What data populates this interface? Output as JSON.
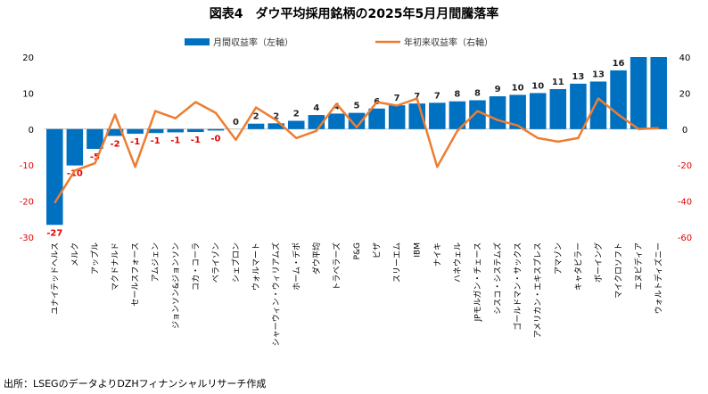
{
  "chart_data": {
    "type": "bar+line",
    "title": "図表4　ダウ平均採用銘柄の2025年5月月間騰落率",
    "categories": [
      "ユナイテッドヘルス",
      "メルク",
      "アップル",
      "マクドナルド",
      "セールスフォース",
      "アムジェン",
      "ジョンソン&ジョンソン",
      "コカ・コーラ",
      "ベライゾン",
      "シェブロン",
      "ウォルマート",
      "シャーウィン・ウィリアムズ",
      "ホーム・デポ",
      "ダウ平均",
      "トラベラーズ",
      "P&G",
      "ビザ",
      "スリーエム",
      "IBM",
      "ナイキ",
      "ハネウェル",
      "JPモルガン・チェース",
      "シスコ・システムズ",
      "ゴールドマン・サックス",
      "アメリカン・エキスプレス",
      "アマゾン",
      "キャタピラー",
      "ボーイング",
      "マイクロソフト",
      "エヌビディア",
      "ウォルトディズニー"
    ],
    "series": [
      {
        "name": "月間収益率（左軸）",
        "type": "bar",
        "axis": "left",
        "color": "#0070c0",
        "values": [
          -26.6,
          -10.1,
          -5.5,
          -1.9,
          -1.3,
          -1.1,
          -0.9,
          -0.8,
          -0.4,
          0.0,
          1.5,
          1.6,
          2.3,
          3.9,
          4.3,
          4.5,
          5.7,
          6.6,
          7.1,
          7.3,
          7.7,
          8.0,
          9.1,
          9.5,
          10.0,
          11.1,
          12.6,
          13.2,
          16.3,
          20.0,
          20.0
        ],
        "labels": [
          "-27",
          "-10",
          "-5",
          "-2",
          "-1",
          "-1",
          "-1",
          "-1",
          "-0",
          "0",
          "2",
          "2",
          "2",
          "4",
          "4",
          "5",
          "6",
          "7",
          "7",
          "7",
          "8",
          "8",
          "9",
          "10",
          "10",
          "11",
          "13",
          "13",
          "16",
          "",
          ""
        ]
      },
      {
        "name": "年初来収益率（右軸）",
        "type": "line",
        "axis": "right",
        "color": "#ed7d31",
        "values": [
          -41,
          -23,
          -19,
          8,
          -21,
          10,
          6,
          15,
          9,
          -6,
          12,
          5,
          -5,
          -1,
          14,
          1,
          15,
          13,
          17,
          -21,
          -1,
          10,
          5,
          2,
          -5,
          -7,
          -5,
          17,
          8,
          0,
          0.5
        ]
      }
    ],
    "ylim_left": [
      -30,
      20
    ],
    "yticks_left": [
      "-30",
      "-20",
      "-10",
      "0",
      "10",
      "20"
    ],
    "ylim_right": [
      -60,
      40
    ],
    "yticks_right": [
      "-60",
      "-40",
      "-20",
      "0",
      "20",
      "40"
    ],
    "legend_position": "top"
  },
  "source": "出所：LSEGのデータよりDZHフィナンシャルリサーチ作成"
}
